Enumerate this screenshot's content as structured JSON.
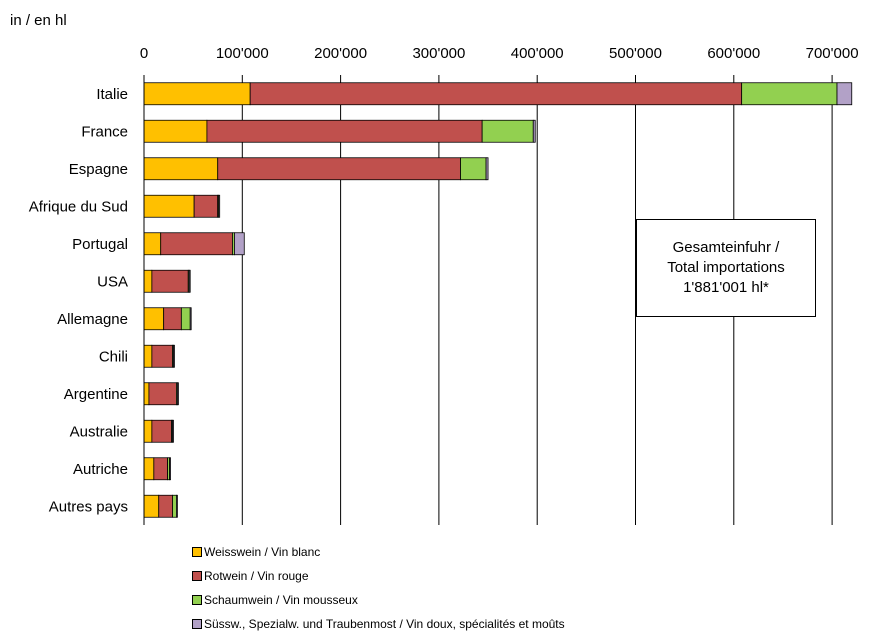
{
  "unit_label": "in / en hl",
  "total_box": {
    "line1": "Gesamteinfuhr /",
    "line2": "Total importations",
    "line3": "1'881'001 hl*"
  },
  "chart_data": {
    "type": "bar",
    "orientation": "horizontal",
    "stacked": true,
    "categories": [
      "Italie",
      "France",
      "Espagne",
      "Afrique du Sud",
      "Portugal",
      "USA",
      "Allemagne",
      "Chili",
      "Argentine",
      "Australie",
      "Autriche",
      "Autres pays"
    ],
    "series": [
      {
        "name": "Weisswein / Vin blanc",
        "color": "#ffc000",
        "values": [
          108000,
          64000,
          75000,
          51000,
          17000,
          8000,
          20000,
          8000,
          5000,
          8000,
          10000,
          15000
        ]
      },
      {
        "name": "Rotwein / Vin rouge",
        "color": "#c0504d",
        "values": [
          500000,
          280000,
          247000,
          24000,
          73000,
          37000,
          18000,
          21000,
          28000,
          20000,
          14000,
          14000
        ]
      },
      {
        "name": "Schaumwein / Vin mousseux",
        "color": "#92d050",
        "values": [
          97000,
          52000,
          26000,
          1000,
          2000,
          1000,
          9000,
          1000,
          1000,
          1000,
          2000,
          4000
        ]
      },
      {
        "name": "Süssw., Spezialw. und Traubenmost / Vin doux, spécialités et moûts",
        "color": "#b2a1c7",
        "values": [
          15000,
          2000,
          2000,
          1000,
          10000,
          1000,
          1000,
          1000,
          1000,
          1000,
          1000,
          1000
        ]
      }
    ],
    "xlim": [
      0,
      700000
    ],
    "xticks": [
      0,
      100000,
      200000,
      300000,
      400000,
      500000,
      600000,
      700000
    ],
    "xtick_labels": [
      "0",
      "100'000",
      "200'000",
      "300'000",
      "400'000",
      "500'000",
      "600'000",
      "700'000"
    ],
    "grid": true,
    "legend_position": "bottom"
  }
}
